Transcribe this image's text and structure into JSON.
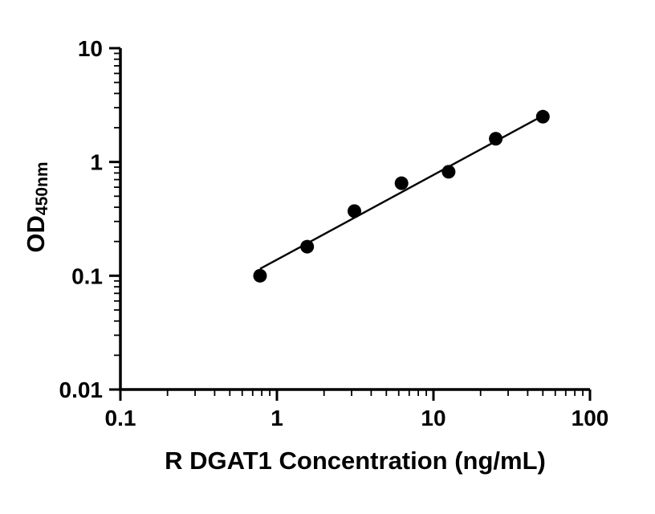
{
  "chart_data": {
    "type": "scatter",
    "title": "",
    "xlabel": "R DGAT1 Concentration (ng/mL)",
    "ylabel_main": "OD",
    "ylabel_sub": "450nm",
    "xscale": "log",
    "yscale": "log",
    "xlim": [
      0.1,
      100
    ],
    "ylim": [
      0.01,
      10
    ],
    "x_ticks": [
      0.1,
      1,
      10,
      100
    ],
    "x_tick_labels": [
      "0.1",
      "1",
      "10",
      "100"
    ],
    "y_ticks": [
      0.01,
      0.1,
      1,
      10
    ],
    "y_tick_labels": [
      "0.01",
      "0.1",
      "1",
      "10"
    ],
    "x": [
      0.78,
      1.56,
      3.125,
      6.25,
      12.5,
      25,
      50
    ],
    "y": [
      0.1,
      0.18,
      0.37,
      0.65,
      0.82,
      1.6,
      2.5
    ],
    "fit_line": {
      "x1": 0.78,
      "y1": 0.115,
      "x2": 50,
      "y2": 2.55
    },
    "marker_color": "#000000",
    "line_color": "#000000",
    "axis_color": "#000000",
    "grid": false,
    "legend": null
  }
}
